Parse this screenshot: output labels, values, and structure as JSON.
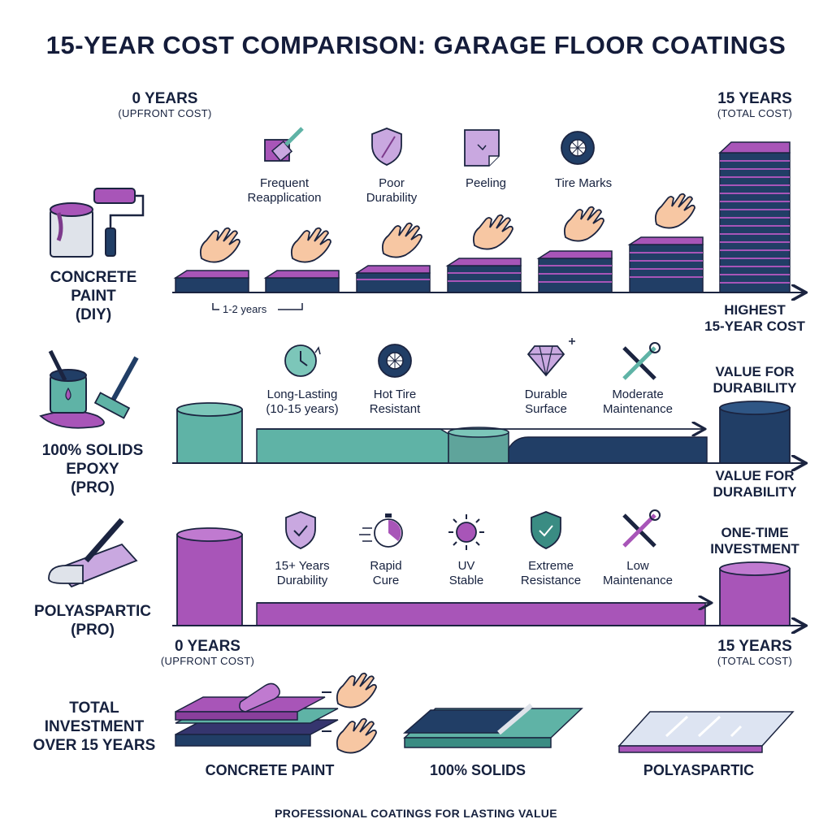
{
  "title": "15-YEAR COST COMPARISON: GARAGE FLOOR COATINGS",
  "top_axis": {
    "start_main": "0 YEARS",
    "start_sub": "(UPFRONT COST)",
    "end_main": "15 YEARS",
    "end_sub": "(TOTAL COST)"
  },
  "bottom_axis": {
    "start_main": "0 YEARS",
    "start_sub": "(UPFRONT COST)",
    "end_main": "15 YEARS",
    "end_sub": "(TOTAL COST)"
  },
  "rows": {
    "paint": {
      "label_line1": "CONCRETE",
      "label_line2": "PAINT",
      "label_line3": "(DIY)",
      "interval": "1-2 years",
      "end_line1": "HIGHEST",
      "end_line2": "15-YEAR COST",
      "features": [
        {
          "line1": "Frequent",
          "line2": "Reapplication",
          "icon": "paint-brush-icon"
        },
        {
          "line1": "Poor",
          "line2": "Durability",
          "icon": "broken-shield-icon"
        },
        {
          "line1": "Peeling",
          "line2": "",
          "icon": "peeling-tile-icon"
        },
        {
          "line1": "Tire Marks",
          "line2": "",
          "icon": "tire-icon"
        }
      ]
    },
    "epoxy": {
      "label_line1": "100% SOLIDS",
      "label_line2": "EPOXY",
      "label_line3": "(PRO)",
      "end_top_line1": "VALUE FOR",
      "end_top_line2": "DURABILITY",
      "end_bottom_line1": "VALUE FOR",
      "end_bottom_line2": "DURABILITY",
      "features": [
        {
          "line1": "Long-Lasting",
          "line2": "(10-15 years)",
          "icon": "clock-icon"
        },
        {
          "line1": "Hot Tire",
          "line2": "Resistant",
          "icon": "tire-icon"
        },
        {
          "line1": "Durable",
          "line2": "Surface",
          "icon": "diamond-icon"
        },
        {
          "line1": "Moderate",
          "line2": "Maintenance",
          "icon": "tools-icon"
        }
      ]
    },
    "poly": {
      "label_line1": "POLYASPARTIC",
      "label_line2": "(PRO)",
      "end_line1": "ONE-TIME",
      "end_line2": "INVESTMENT",
      "features": [
        {
          "line1": "15+ Years",
          "line2": "Durability",
          "icon": "check-shield-icon"
        },
        {
          "line1": "Rapid",
          "line2": "Cure",
          "icon": "stopwatch-icon"
        },
        {
          "line1": "UV",
          "line2": "Stable",
          "icon": "sun-icon"
        },
        {
          "line1": "Extreme",
          "line2": "Resistance",
          "icon": "check-shield-icon"
        },
        {
          "line1": "Low",
          "line2": "Maintenance",
          "icon": "tools-icon"
        }
      ]
    }
  },
  "total": {
    "line1": "TOTAL",
    "line2": "INVESTMENT",
    "line3": "OVER 15 YEARS",
    "items": [
      "CONCRETE PAINT",
      "100% SOLIDS",
      "POLYASPARTIC"
    ]
  },
  "footer": "PROFESSIONAL COATINGS FOR LASTING VALUE",
  "colors": {
    "purple": "#a855b8",
    "navy": "#213e66",
    "teal": "#5fb3a6",
    "outline": "#1b2440",
    "lilac": "#c9a8e0"
  }
}
